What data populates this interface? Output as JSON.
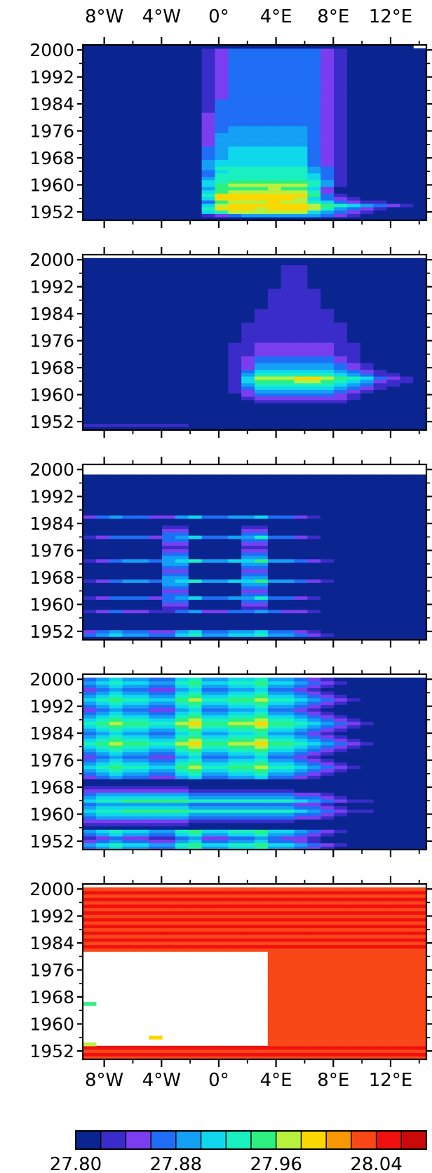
{
  "chart_data": {
    "type": "heatmap",
    "x_tick_labels": [
      "8°W",
      "4°W",
      "0°",
      "4°E",
      "8°E",
      "12°E"
    ],
    "x_tick_values": [
      -8,
      -4,
      0,
      4,
      8,
      12
    ],
    "xlim": [
      -9.5,
      14.5
    ],
    "y_tick_labels": [
      "2000",
      "1992",
      "1984",
      "1976",
      "1968",
      "1960",
      "1952"
    ],
    "y_tick_values": [
      2000,
      1992,
      1984,
      1976,
      1968,
      1960,
      1952
    ],
    "ylim": [
      1949.5,
      2001.5
    ],
    "colorbar": {
      "tick_labels": [
        "27.80",
        "27.88",
        "27.96",
        "28.04"
      ],
      "tick_values": [
        27.8,
        27.88,
        27.96,
        28.04
      ],
      "range": [
        27.8,
        28.08
      ],
      "colors": [
        "#0a2590",
        "#3a2cc8",
        "#7a3ef0",
        "#1f6ef5",
        "#13a0f5",
        "#0fd8ec",
        "#18f0c0",
        "#2df080",
        "#b8f040",
        "#f8d800",
        "#f89800",
        "#f84818",
        "#f01010",
        "#c80a0a"
      ]
    },
    "panels": [
      {
        "panel": 1,
        "rows_from_1950_to_2001": [
          "00000000000000000000000000",
          "00000000012344444432100000",
          "00000000056888888543210000",
          "00000000069998999864321000",
          "00000000058999999876543210",
          "00000000037888988653211000",
          "00000000059999998532100000",
          "00000000069999999731000000",
          "00000000057888888620000000",
          "00000000047777877520000000",
          "00000000057888888641000000",
          "00000000056777777641000000",
          "00000000046666666531000000",
          "00000000036666666531000000",
          "00000000035666666431000000",
          "00000000046666666431000000",
          "00000000045555555321000000",
          "00000000045555555321000000",
          "00000000034555555321000000",
          "00000000034555555321000000",
          "00000000034555555321000000",
          "00000000034555555321000000",
          "00000000024444444321000000",
          "00000000024444444321000000",
          "00000000024444444321000000",
          "00000000024444444321000000",
          "00000000023444444321000000",
          "00000000023444444321000000",
          "00000000023333333321000000",
          "00000000023333333321000000",
          "00000000023333333321000000",
          "00000000023333333321000000",
          "00000000013333333321000000",
          "00000000013333333321000000",
          "00000000013333333321000000",
          "00000000013333333321000000",
          "00000000012333333321000000",
          "00000000012333333321000000",
          "00000000012333333321000000",
          "00000000012333333321000000",
          "00000000012333333321000000",
          "00000000012333333321000000",
          "00000000012333333321000000",
          "00000000012333333321000000",
          "00000000012333333321000000",
          "00000000012333333321000000",
          "00000000012333333321000000",
          "00000000012333333321000000",
          "00000000012333333321000000",
          "00000000012333333321000000",
          "00000000012333333321000000",
          "0000000000000000000000000x"
        ]
      },
      {
        "panel": 2,
        "rows_from_1950_to_2001": [
          "00000000000000000000000000",
          "11111111000000000000000000",
          "00000000000000000000000000",
          "00000000000000000000000000",
          "00000000000000000000000000",
          "00000000000000000000000000",
          "00000000000000000000000000",
          "00000000000000000000000000",
          "00000000000001111111000000",
          "00000000000012222222100000",
          "00000000000023333332100000",
          "00000000000124444443210000",
          "00000000000135555554321000",
          "00000000000146666665431100",
          "00000000000157778876542110",
          "00000000000158889987653210",
          "00000000000146666665431100",
          "00000000000135555554321000",
          "00000000000124444443210000",
          "00000000000124444443210000",
          "00000000000123333332100000",
          "00000000000123333332100000",
          "00000000000112222221100000",
          "00000000000112222221100000",
          "00000000000112222221100000",
          "00000000000112222221100000",
          "00000000000011111111000000",
          "00000000000011111111000000",
          "00000000000011111111000000",
          "00000000000011111111000000",
          "00000000000011111111000000",
          "00000000000011111111000000",
          "00000000000001111110000000",
          "00000000000001111110000000",
          "00000000000001111110000000",
          "00000000000001111110000000",
          "00000000000000111100000000",
          "00000000000000111100000000",
          "00000000000000111100000000",
          "00000000000000111100000000",
          "00000000000000111100000000",
          "00000000000000111100000000",
          "00000000000000011000000000",
          "00000000000000011000000000",
          "00000000000000011000000000",
          "00000000000000011000000000",
          "00000000000000011000000000",
          "00000000000000011000000000",
          "00000000000000011000000000",
          "00000000000000000000000000",
          "00000000000000000000000000",
          "xxxxxxxxxxxxxxxxxxxxxxxxxx"
        ]
      },
      {
        "panel": 3,
        "rows_from_1950_to_2001": [
          "00000000000000000000000000",
          "34544335644556443210000000",
          "23433224533445332100000000",
          "00000000000000000000000000",
          "00000000000000000000000000",
          "00000000000000000000000000",
          "00000000000000000000000000",
          "00000000000000000000000000",
          "12322113422334322100000000",
          "00000011000011000000000000",
          "00000022000022000000000000",
          "00000033000033000000000000",
          "12333234533446332100000000",
          "00000033000033000000000000",
          "00000022000022000000000000",
          "00000033000033000000000000",
          "00000044000044000000000000",
          "12344345644557443210000000",
          "00000044000044000000000000",
          "00000033000033000000000000",
          "00000022000022000000000000",
          "00000033000033000000000000",
          "00000044000044000000000000",
          "12344345644557443210000000",
          "00000044000044000000000000",
          "00000033000033000000000000",
          "00000022000022000000000000",
          "00000011000011000000000000",
          "00000022000022000000000000",
          "00000033000033000000000000",
          "12333234533446332100000000",
          "00000033000033000000000000",
          "00000022000022000000000000",
          "00000011000011000000000000",
          "00000000000000000000000000",
          "00000000000000000000000000",
          "23433224533445332100000000",
          "00000000000000000000000000",
          "00000000000000000000000000",
          "00000000000000000000000000",
          "00000000000000000000000000",
          "00000000000000000000000000",
          "00000000000000000000000000",
          "00000000000000000000000000",
          "00000000000000000000000000",
          "00000000000000000000000000",
          "00000000000000000000000000",
          "00000000000000000000000000",
          "00000000000000000000000000",
          "xxxxxxxxxxxxxxxxxxxxxxxxxx",
          "xxxxxxxxxxxxxxxxxxxxxxxxxx",
          "xxxxxxxxxxxxxxxxxxxxxxxxxx"
        ]
      },
      {
        "panel": 4,
        "rows_from_1950_to_2001": [
          "34544335644556443210000000",
          "45655446755667554321000000",
          "23433224533445332100000000",
          "12322113422334322100000000",
          "34544335644556443210000000",
          "45655446755667554321000000",
          "00000000000000000000000000",
          "11111111000000000000000000",
          "22222222111111110000000000",
          "34444444333333332210000000",
          "45555555444444443321000000",
          "56677777666666665432110000",
          "45555555444444443321000000",
          "34444444333333332210000000",
          "56677777666666665432110000",
          "45555555444444443321000000",
          "34444444333333332210000000",
          "22222222111111110000000000",
          "11111111000000000000000000",
          "00000000000000000000000000",
          "00000000000000000000000000",
          "23433224533445332100000000",
          "34544335644556443210000000",
          "45655446755667554321000000",
          "56766557866778665432100000",
          "45655446755667554321000000",
          "34544335644556443210000000",
          "23433224533445332100000000",
          "34544335644556443210000000",
          "45655446755667554321000000",
          "56766557866778665432100000",
          "67877668977889776543210000",
          "56766557866778665432100000",
          "45655446755667554321000000",
          "34544335644556443210000000",
          "45655446755667554321000000",
          "56766557866778665432100000",
          "67877668977889776543210000",
          "56766557866778665432100000",
          "45655446755667554321000000",
          "34544335644556443210000000",
          "23433224533445332100000000",
          "34544335644556443210000000",
          "45655446755667554321000000",
          "56766557866778665432100000",
          "45655446755667554321000000",
          "34544335644556443210000000",
          "23433224533445332100000000",
          "34544335644556443210000000",
          "45655446755667554321000000",
          "34544335644556443210000000",
          "xxxxxxxxxxxxxxxxxxxxxxxxxx"
        ]
      },
      {
        "panel": 5,
        "rows_from_1950_to_2001": [
          "bbbbbbbbbbbbbbbbbbbbbbbbbb",
          "cccccccccccccccccccccccccc",
          "bbbbbbbbbbbbbbbbbbbbbbbbbb",
          "cccccccccccccccccccccccccc",
          "8xxxxxxxxxxxxxbbbbbbbbbbbb",
          "xxxxxxxxxxxxxxbbbbbbbbbbbb",
          "xxxxx9xxxxxxxxbbbbbbbbbbbb",
          "xxxxxxxxxxxxxxbbbbbbbbbbbb",
          "xxxxxxxxxxxxxxbbbbbbbbbbbb",
          "xxxxxxxxxxxxxxbbbbbbbbbbbb",
          "xxxxxxxxxxxxxxbbbbbbbbbbbb",
          "xxxxxxxxxxxxxxbbbbbbbbbbbb",
          "xxxxxxxxxxxxxxbbbbbbbbbbbb",
          "xxxxxxxxxxxxxxbbbbbbbbbbbb",
          "xxxxxxxxxxxxxxbbbbbbbbbbbb",
          "xxxxxxxxxxxxxxbbbbbbbbbbbb",
          "7xxxxxxxxxxxxxbbbbbbbbbbbb",
          "xxxxxxxxxxxxxxbbbbbbbbbbbb",
          "xxxxxxxxxxxxxxbbbbbbbbbbbb",
          "xxxxxxxxxxxxxxbbbbbbbbbbbb",
          "xxxxxxxxxxxxxxbbbbbbbbbbbb",
          "xxxxxxxxxxxxxxbbbbbbbbbbbb",
          "xxxxxxxxxxxxxxbbbbbbbbbbbb",
          "xxxxxxxxxxxxxxbbbbbbbbbbbb",
          "xxxxxxxxxxxxxxbbbbbbbbbbbb",
          "xxxxxxxxxxxxxxbbbbbbbbbbbb",
          "xxxxxxxxxxxxxxbbbbbbbbbbbb",
          "xxxxxxxxxxxxxxbbbbbbbbbbbb",
          "xxxxxxxxxxxxxxbbbbbbbbbbbb",
          "xxxxxxxxxxxxxxbbbbbbbbbbbb",
          "xxxxxxxxxxxxxxbbbbbbbbbbbb",
          "xxxxxxxxxxxxxxbbbbbbbbbbbb",
          "bbbbbbbbbbbbbbbbbbbbbbbbbb",
          "cccccccccccccccccccccccccc",
          "bbbbbbbbbbbbbbbbbbbbbbbbbb",
          "cccccccccccccccccccccccccc",
          "bbbbbbbbbbbbbbbbbbbbbbbbbb",
          "cccccccccccccccccccccccccc",
          "bbbbbbbbbbbbbbbbbbbbbbbbbb",
          "cccccccccccccccccccccccccc",
          "bbbbbbbbbbbbbbbbbbbbbbbbbb",
          "cccccccccccccccccccccccccc",
          "bbbbbbbbbbbbbbbbbbbbbbbbbb",
          "cccccccccccccccccccccccccc",
          "bbbbbbbbbbbbbbbbbbbbbbbbbb",
          "cccccccccccccccccccccccccc",
          "bbbbbbbbbbbbbbbbbbbbbbbbbb",
          "cccccccccccccccccccccccccc",
          "bbbbbbbbbbbbbbbbbbbbbbbbbb",
          "cccccccccccccccccccccccccc",
          "bbbbbbbbbbbbbbbbbbbbbbbbbb",
          "xxxxxxxxxxxxxxxxxxxxxxxxxx"
        ]
      }
    ]
  }
}
